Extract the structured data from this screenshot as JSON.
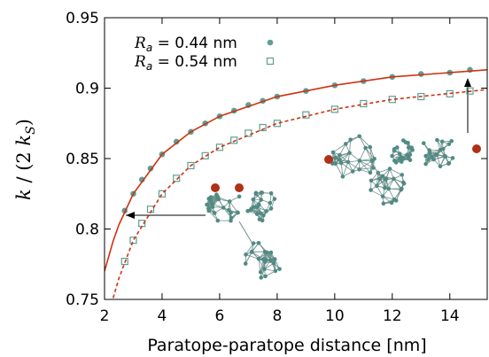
{
  "chart_data": {
    "type": "scatter",
    "xlabel": "Paratope-paratope distance [nm]",
    "ylabel": "k / (2 kS)",
    "xlim": [
      2,
      15.3
    ],
    "ylim": [
      0.75,
      0.95
    ],
    "xticks": [
      2,
      4,
      6,
      8,
      10,
      12,
      14
    ],
    "yticks": [
      0.75,
      0.8,
      0.85,
      0.9,
      0.95
    ],
    "legend": "upper left",
    "series": [
      {
        "name": "Ra = 0.44 nm",
        "marker": "circle",
        "color": "#5f9e96",
        "x": [
          2.7,
          3,
          3.3,
          3.6,
          4,
          4.5,
          5,
          5.5,
          6,
          6.5,
          7,
          7.5,
          8,
          9,
          10,
          11,
          12,
          13,
          14,
          14.7
        ],
        "values": [
          0.813,
          0.825,
          0.835,
          0.843,
          0.853,
          0.862,
          0.869,
          0.875,
          0.88,
          0.884,
          0.888,
          0.891,
          0.894,
          0.898,
          0.902,
          0.905,
          0.908,
          0.91,
          0.911,
          0.913
        ]
      },
      {
        "name": "Ra = 0.54 nm",
        "marker": "square",
        "color": "#5f9e96",
        "x": [
          2.7,
          3,
          3.3,
          3.6,
          4,
          4.5,
          5,
          5.5,
          6,
          6.5,
          7,
          7.5,
          8,
          9,
          10,
          11,
          12,
          13,
          14,
          14.7
        ],
        "values": [
          0.777,
          0.792,
          0.804,
          0.814,
          0.825,
          0.836,
          0.845,
          0.852,
          0.858,
          0.863,
          0.868,
          0.872,
          0.875,
          0.881,
          0.885,
          0.889,
          0.892,
          0.894,
          0.896,
          0.898
        ]
      },
      {
        "marker": "line",
        "dash": false,
        "color": "#cc3311",
        "x": [
          2,
          2.3,
          2.5,
          3,
          4,
          5,
          6,
          8,
          10,
          12,
          15.3
        ],
        "values": [
          0.77,
          0.7915,
          0.803,
          0.825,
          0.853,
          0.869,
          0.88,
          0.894,
          0.902,
          0.908,
          0.913
        ]
      },
      {
        "marker": "line",
        "dash": true,
        "color": "#cc3311",
        "x": [
          2,
          2.3,
          2.5,
          3,
          4,
          5,
          6,
          8,
          10,
          12,
          15.3
        ],
        "values": [
          null,
          0.751,
          0.765,
          0.792,
          0.825,
          0.845,
          0.858,
          0.875,
          0.885,
          0.892,
          0.899
        ]
      }
    ]
  }
}
